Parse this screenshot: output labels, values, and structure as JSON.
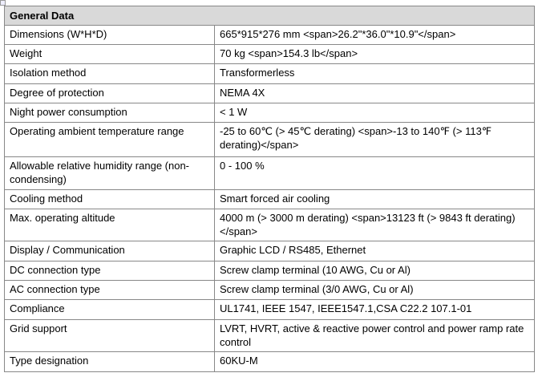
{
  "table": {
    "header": "General Data",
    "rows": [
      [
        "Dimensions (W*H*D)",
        "665*915*276 mm <span>26.2\"*36.0\"*10.9\"</span>"
      ],
      [
        "Weight",
        "70 kg <span>154.3 lb</span>"
      ],
      [
        "Isolation method",
        "Transformerless"
      ],
      [
        "Degree of protection",
        "NEMA 4X"
      ],
      [
        "Night power consumption",
        "< 1 W"
      ],
      [
        "Operating ambient temperature range",
        "-25 to 60℃ (> 45℃ derating) <span>-13 to 140℉ (> 113℉ derating)</span>"
      ],
      [
        "Allowable relative humidity range (non-condensing)",
        "0 - 100 %"
      ],
      [
        "Cooling method",
        "Smart forced air cooling"
      ],
      [
        "Max. operating altitude",
        "4000 m (> 3000 m derating) <span>13123 ft (> 9843 ft derating)</span>"
      ],
      [
        "Display / Communication",
        "Graphic LCD / RS485, Ethernet"
      ],
      [
        "DC connection type",
        "Screw clamp terminal (10 AWG, Cu or Al)"
      ],
      [
        "AC connection type",
        "Screw clamp terminal (3/0 AWG, Cu or Al)"
      ],
      [
        "Compliance",
        "UL1741, IEEE 1547, IEEE1547.1,CSA C22.2 107.1-01"
      ],
      [
        "Grid support",
        "LVRT, HVRT, active & reactive power control and power ramp rate control"
      ],
      [
        "Type designation",
        "60KU-M"
      ]
    ]
  }
}
